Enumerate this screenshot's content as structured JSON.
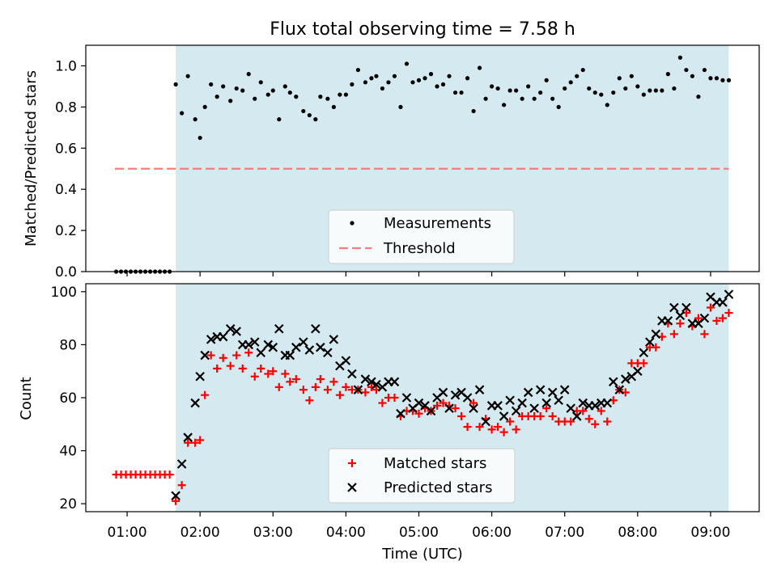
{
  "chart_data": [
    {
      "type": "scatter",
      "title": "Flux total observing time = 7.58 h",
      "xlabel": "",
      "ylabel": "Matched/Predicted stars",
      "ylim": [
        0,
        1.1
      ],
      "xlim": [
        "00:26",
        "09:40"
      ],
      "yticks": [
        "0.0",
        "0.2",
        "0.4",
        "0.6",
        "0.8",
        "1.0"
      ],
      "grid": false,
      "legend_position": "lower-center",
      "shaded_interval": {
        "start": "01:40",
        "end": "09:15",
        "color": "#d4eaf0"
      },
      "threshold": {
        "name": "Threshold",
        "value": 0.5,
        "x_start": "00:50",
        "x_end": "09:15",
        "color": "#f08080"
      },
      "series": [
        {
          "name": "Measurements",
          "color": "#000000",
          "x": [
            "00:51",
            "00:55",
            "00:59",
            "01:03",
            "01:07",
            "01:11",
            "01:15",
            "01:19",
            "01:23",
            "01:27",
            "01:31",
            "01:35",
            "01:40",
            "01:45",
            "01:50",
            "01:56",
            "02:00",
            "02:04",
            "02:09",
            "02:14",
            "02:19",
            "02:25",
            "02:30",
            "02:35",
            "02:40",
            "02:45",
            "02:50",
            "02:56",
            "03:00",
            "03:05",
            "03:10",
            "03:14",
            "03:19",
            "03:25",
            "03:30",
            "03:35",
            "03:39",
            "03:45",
            "03:50",
            "03:55",
            "04:00",
            "04:05",
            "04:10",
            "04:16",
            "04:21",
            "04:25",
            "04:30",
            "04:35",
            "04:40",
            "04:45",
            "04:50",
            "04:55",
            "05:00",
            "05:05",
            "05:10",
            "05:15",
            "05:20",
            "05:25",
            "05:30",
            "05:35",
            "05:40",
            "05:45",
            "05:50",
            "05:55",
            "06:00",
            "06:05",
            "06:10",
            "06:15",
            "06:20",
            "06:25",
            "06:30",
            "06:35",
            "06:40",
            "06:45",
            "06:50",
            "06:55",
            "07:00",
            "07:05",
            "07:10",
            "07:15",
            "07:20",
            "07:25",
            "07:30",
            "07:35",
            "07:40",
            "07:45",
            "07:50",
            "07:55",
            "08:00",
            "08:05",
            "08:10",
            "08:15",
            "08:20",
            "08:25",
            "08:30",
            "08:35",
            "08:40",
            "08:45",
            "08:50",
            "08:55",
            "09:00",
            "09:05",
            "09:10",
            "09:15"
          ],
          "y": [
            0,
            0,
            0,
            0,
            0,
            0,
            0,
            0,
            0,
            0,
            0,
            0,
            0.91,
            0.77,
            0.95,
            0.74,
            0.65,
            0.8,
            0.91,
            0.85,
            0.9,
            0.83,
            0.89,
            0.88,
            0.96,
            0.84,
            0.92,
            0.86,
            0.88,
            0.74,
            0.9,
            0.87,
            0.85,
            0.78,
            0.76,
            0.74,
            0.85,
            0.84,
            0.8,
            0.86,
            0.86,
            0.91,
            0.98,
            0.92,
            0.94,
            0.95,
            0.89,
            0.92,
            0.95,
            0.8,
            1.01,
            0.92,
            0.93,
            0.94,
            0.96,
            0.9,
            0.91,
            0.95,
            0.87,
            0.87,
            0.94,
            0.78,
            0.99,
            0.84,
            0.9,
            0.89,
            0.81,
            0.88,
            0.88,
            0.84,
            0.9,
            0.84,
            0.87,
            0.93,
            0.84,
            0.8,
            0.89,
            0.92,
            0.95,
            0.98,
            0.89,
            0.87,
            0.86,
            0.81,
            0.87,
            0.94,
            0.89,
            0.95,
            0.9,
            0.86,
            0.88,
            0.88,
            0.88,
            0.96,
            0.89,
            1.04,
            0.98,
            0.95,
            0.85,
            0.98,
            0.94,
            0.94,
            0.93,
            0.93
          ]
        }
      ]
    },
    {
      "type": "scatter",
      "title": "",
      "xlabel": "Time (UTC)",
      "ylabel": "Count",
      "ylim": [
        17,
        103
      ],
      "xlim": [
        "00:26",
        "09:40"
      ],
      "xticks": [
        "01:00",
        "02:00",
        "03:00",
        "04:00",
        "05:00",
        "06:00",
        "07:00",
        "08:00",
        "09:00"
      ],
      "yticks": [
        "20",
        "40",
        "60",
        "80",
        "100"
      ],
      "grid": false,
      "legend_position": "lower-center",
      "shaded_interval": {
        "start": "01:40",
        "end": "09:15",
        "color": "#d4eaf0"
      },
      "series": [
        {
          "name": "Matched stars",
          "marker": "plus",
          "color": "#ff0000",
          "x": [
            "00:51",
            "00:55",
            "00:59",
            "01:03",
            "01:07",
            "01:11",
            "01:15",
            "01:19",
            "01:23",
            "01:27",
            "01:31",
            "01:35",
            "01:40",
            "01:45",
            "01:50",
            "01:56",
            "02:00",
            "02:04",
            "02:09",
            "02:14",
            "02:19",
            "02:25",
            "02:30",
            "02:35",
            "02:40",
            "02:45",
            "02:50",
            "02:56",
            "03:00",
            "03:05",
            "03:10",
            "03:14",
            "03:19",
            "03:25",
            "03:30",
            "03:35",
            "03:39",
            "03:45",
            "03:50",
            "03:55",
            "04:00",
            "04:05",
            "04:10",
            "04:16",
            "04:21",
            "04:25",
            "04:30",
            "04:35",
            "04:40",
            "04:45",
            "04:50",
            "04:55",
            "05:00",
            "05:05",
            "05:10",
            "05:15",
            "05:20",
            "05:25",
            "05:30",
            "05:35",
            "05:40",
            "05:45",
            "05:50",
            "05:55",
            "06:00",
            "06:05",
            "06:10",
            "06:15",
            "06:20",
            "06:25",
            "06:30",
            "06:35",
            "06:40",
            "06:45",
            "06:50",
            "06:55",
            "07:00",
            "07:05",
            "07:10",
            "07:15",
            "07:20",
            "07:25",
            "07:30",
            "07:35",
            "07:40",
            "07:45",
            "07:50",
            "07:55",
            "08:00",
            "08:05",
            "08:10",
            "08:15",
            "08:20",
            "08:25",
            "08:30",
            "08:35",
            "08:40",
            "08:45",
            "08:50",
            "08:55",
            "09:00",
            "09:05",
            "09:10",
            "09:15"
          ],
          "y": [
            31,
            31,
            31,
            31,
            31,
            31,
            31,
            31,
            31,
            31,
            31,
            31,
            21,
            27,
            43,
            43,
            44,
            61,
            76,
            71,
            75,
            72,
            76,
            71,
            77,
            68,
            71,
            69,
            70,
            64,
            69,
            66,
            67,
            63,
            59,
            64,
            67,
            63,
            66,
            61,
            64,
            63,
            63,
            62,
            64,
            63,
            58,
            60,
            60,
            53,
            55,
            55,
            54,
            56,
            55,
            57,
            58,
            57,
            56,
            53,
            49,
            58,
            49,
            52,
            48,
            49,
            47,
            51,
            48,
            53,
            53,
            53,
            53,
            56,
            53,
            51,
            51,
            51,
            55,
            55,
            52,
            50,
            55,
            51,
            59,
            63,
            62,
            73,
            73,
            73,
            79,
            79,
            83,
            88,
            84,
            88,
            92,
            87,
            90,
            84,
            94,
            89,
            90,
            92
          ]
        },
        {
          "name": "Predicted stars",
          "marker": "x",
          "color": "#000000",
          "x": [
            "01:40",
            "01:45",
            "01:50",
            "01:56",
            "02:00",
            "02:04",
            "02:09",
            "02:14",
            "02:19",
            "02:25",
            "02:30",
            "02:35",
            "02:40",
            "02:45",
            "02:50",
            "02:56",
            "03:00",
            "03:05",
            "03:10",
            "03:14",
            "03:19",
            "03:25",
            "03:30",
            "03:35",
            "03:39",
            "03:45",
            "03:50",
            "03:55",
            "04:00",
            "04:05",
            "04:10",
            "04:16",
            "04:21",
            "04:25",
            "04:30",
            "04:35",
            "04:40",
            "04:45",
            "04:50",
            "04:55",
            "05:00",
            "05:05",
            "05:10",
            "05:15",
            "05:20",
            "05:25",
            "05:30",
            "05:35",
            "05:40",
            "05:45",
            "05:50",
            "05:55",
            "06:00",
            "06:05",
            "06:10",
            "06:15",
            "06:20",
            "06:25",
            "06:30",
            "06:35",
            "06:40",
            "06:45",
            "06:50",
            "06:55",
            "07:00",
            "07:05",
            "07:10",
            "07:15",
            "07:20",
            "07:25",
            "07:30",
            "07:35",
            "07:40",
            "07:45",
            "07:50",
            "07:55",
            "08:00",
            "08:05",
            "08:10",
            "08:15",
            "08:20",
            "08:25",
            "08:30",
            "08:35",
            "08:40",
            "08:45",
            "08:50",
            "08:55",
            "09:00",
            "09:05",
            "09:10",
            "09:15"
          ],
          "y": [
            23,
            35,
            45,
            58,
            68,
            76,
            82,
            83,
            83,
            86,
            85,
            80,
            80,
            81,
            77,
            80,
            79,
            86,
            76,
            76,
            79,
            81,
            78,
            86,
            79,
            77,
            82,
            72,
            74,
            69,
            63,
            67,
            66,
            65,
            64,
            66,
            66,
            54,
            60,
            56,
            58,
            57,
            55,
            60,
            62,
            56,
            61,
            62,
            60,
            56,
            63,
            51,
            57,
            57,
            53,
            59,
            55,
            58,
            62,
            56,
            63,
            58,
            62,
            59,
            63,
            56,
            53,
            58,
            57,
            57,
            58,
            58,
            66,
            63,
            67,
            68,
            70,
            77,
            81,
            84,
            89,
            89,
            94,
            91,
            94,
            88,
            88,
            90,
            98,
            96,
            96,
            99
          ]
        }
      ]
    }
  ]
}
